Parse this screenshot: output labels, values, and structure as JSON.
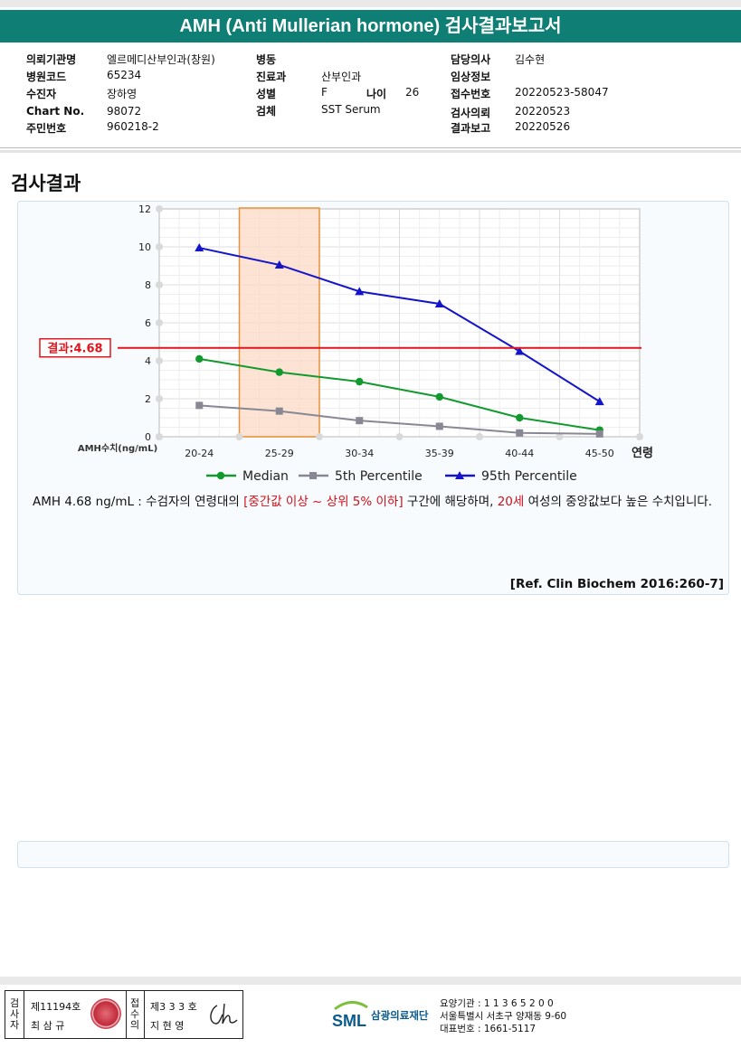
{
  "report_title": "AMH (Anti Mullerian hormone) 검사결과보고서",
  "info": {
    "col1": [
      {
        "label": "의뢰기관명",
        "value": "엘르메디산부인과(창원)"
      },
      {
        "label": "병원코드",
        "value": "65234"
      },
      {
        "label": "수진자",
        "value": "장하영"
      },
      {
        "label": "Chart No.",
        "value": "98072"
      },
      {
        "label": "주민번호",
        "value": "960218-2"
      }
    ],
    "col2": [
      {
        "label": "병동",
        "value": ""
      },
      {
        "label": "진료과",
        "value": "산부인과"
      },
      {
        "label": "성별",
        "value": "F"
      },
      {
        "label": "검체",
        "value": "SST Serum"
      }
    ],
    "age": {
      "label": "나이",
      "value": "26"
    },
    "col3": [
      {
        "label": "담당의사",
        "value": "김수현"
      },
      {
        "label": "임상정보",
        "value": ""
      },
      {
        "label": "접수번호",
        "value": "20220523-58047"
      },
      {
        "label": "검사의뢰",
        "value": "20220523"
      },
      {
        "label": "결과보고",
        "value": "20220526"
      }
    ]
  },
  "section_title": "검사결과",
  "chart_data": {
    "type": "line",
    "categories": [
      "20-24",
      "25-29",
      "30-34",
      "35-39",
      "40-44",
      "45-50"
    ],
    "xlabel": "연령",
    "ylabel": "AMH수치(ng/mL)",
    "ylim": [
      0,
      12
    ],
    "yticks": [
      0,
      2,
      4,
      6,
      8,
      10,
      12
    ],
    "grid": true,
    "legend_placement": "bottom",
    "highlight_category": "25-29",
    "result_line": {
      "value": 4.68,
      "label": "결과:4.68",
      "color": "#e0161e"
    },
    "series": [
      {
        "name": "Median",
        "values": [
          4.1,
          3.4,
          2.9,
          2.1,
          1.0,
          0.35
        ],
        "color": "#129a2f",
        "marker": "circle"
      },
      {
        "name": "5th Percentile",
        "values": [
          1.65,
          1.35,
          0.85,
          0.55,
          0.2,
          0.15
        ],
        "color": "#888894",
        "marker": "square"
      },
      {
        "name": "95th Percentile",
        "values": [
          9.95,
          9.05,
          7.65,
          7.0,
          4.5,
          1.85
        ],
        "color": "#1414c8",
        "marker": "triangle"
      }
    ]
  },
  "description": {
    "part1": "AMH  4.68 ng/mL : 수검자의 연령대의 ",
    "red1": "[중간값 이상 ~ 상위 5% 이하]",
    "part2": "  구간에 해당하며, ",
    "red2": "20세",
    "part3": " 여성의 중앙값보다 높은 수치입니다."
  },
  "reference": "[Ref. Clin Biochem 2016:260-7]",
  "footer": {
    "inspector_vertical": "검사자",
    "inspector_license": "제11194호",
    "inspector_name": "최 삼 규",
    "confirmer_vertical": "접수의",
    "confirmer_license": "제3 3 3 호",
    "confirmer_name": "지 현 영",
    "logo_abbr": "SML",
    "org_name": "삼광의료재단",
    "code_line": "요양기관 : 1 1 3 6 5 2 0 0",
    "address_line": "서울특별시 서초구 양재동 9-60",
    "phone_line": "대표번호 : 1661-5117"
  }
}
